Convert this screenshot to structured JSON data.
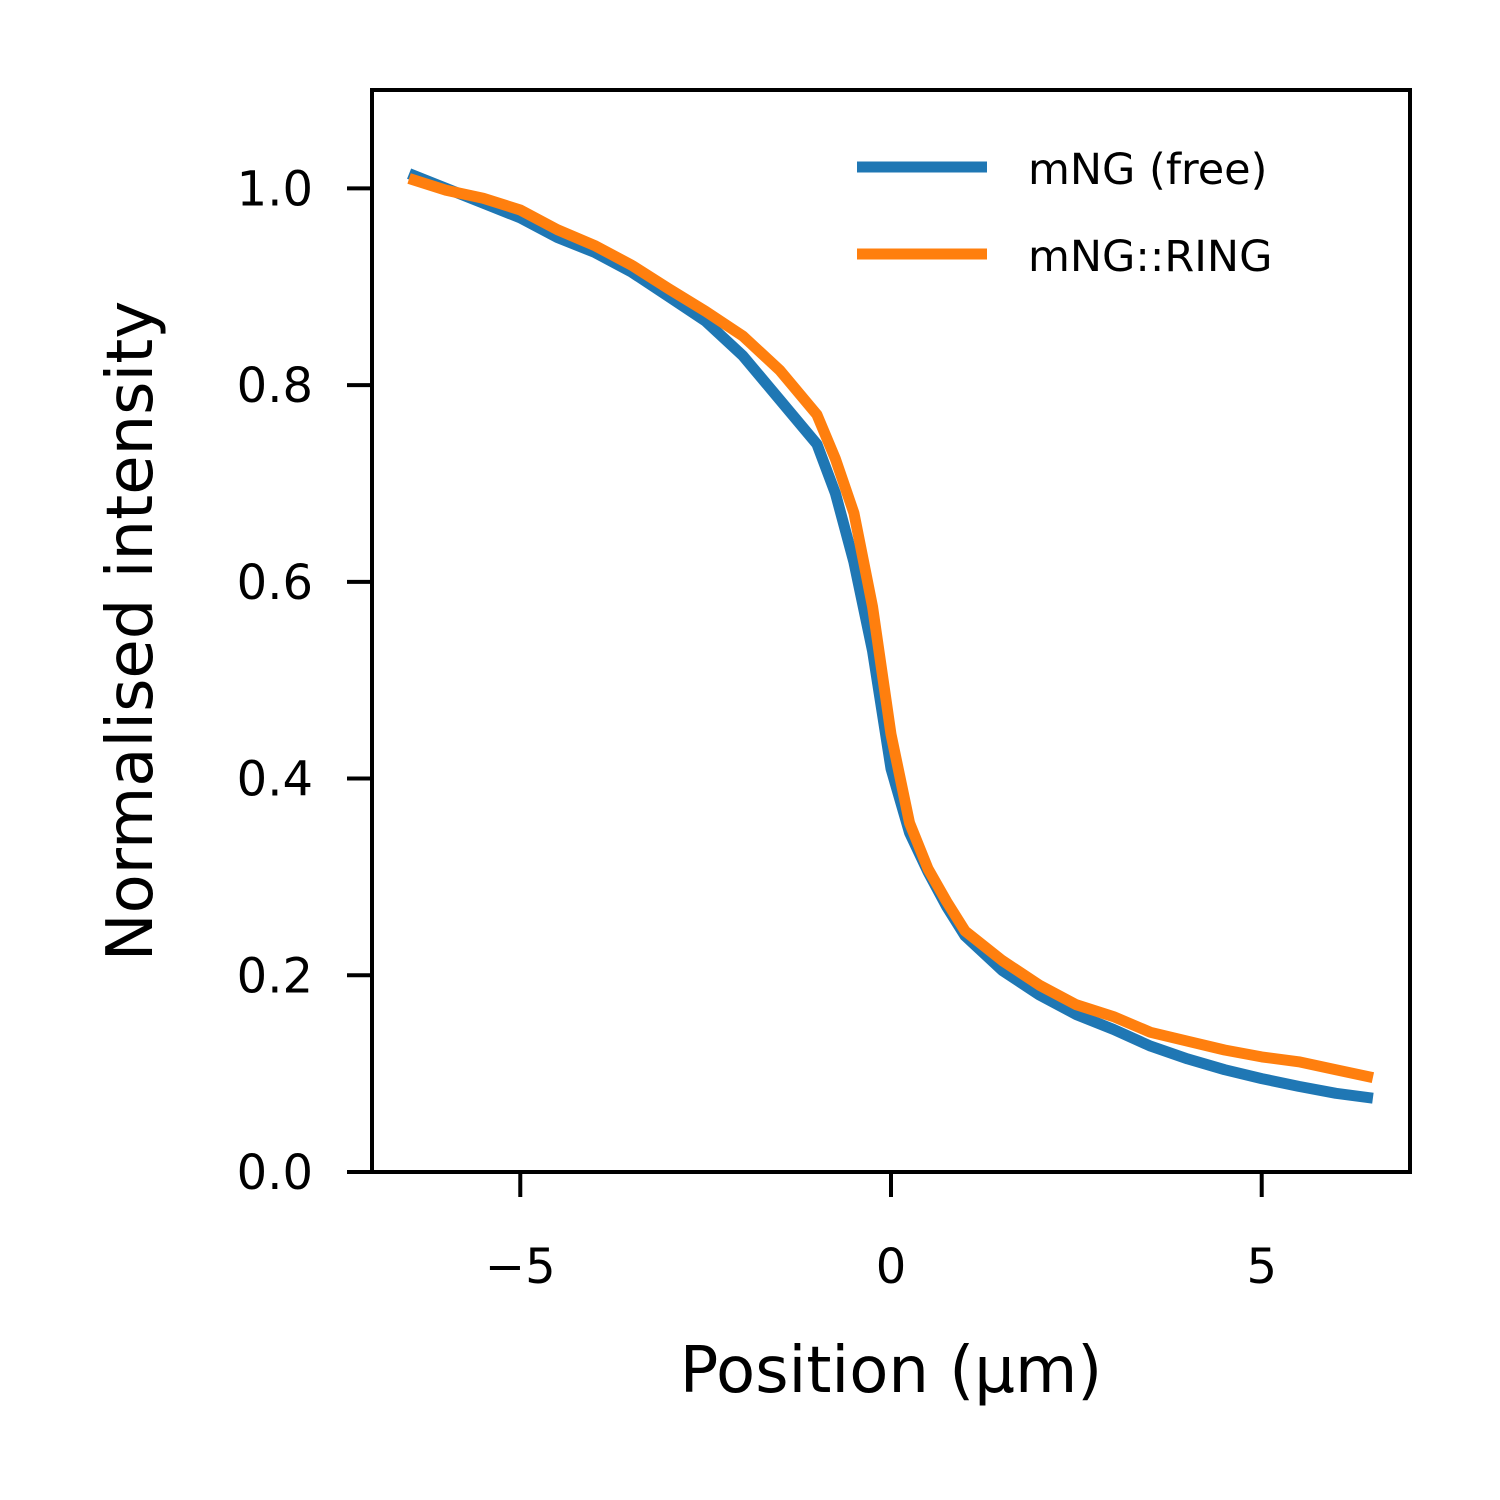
{
  "chart_data": {
    "type": "line",
    "title": "",
    "xlabel": "Position (µm)",
    "ylabel": "Normalised intensity",
    "xlim": [
      -7,
      7
    ],
    "ylim": [
      0.0,
      1.1
    ],
    "xticks": [
      {
        "value": -5,
        "label": "−5"
      },
      {
        "value": 0,
        "label": "0"
      },
      {
        "value": 5,
        "label": "5"
      }
    ],
    "yticks": [
      {
        "value": 0.0,
        "label": "0.0"
      },
      {
        "value": 0.2,
        "label": "0.2"
      },
      {
        "value": 0.4,
        "label": "0.4"
      },
      {
        "value": 0.6,
        "label": "0.6"
      },
      {
        "value": 0.8,
        "label": "0.8"
      },
      {
        "value": 1.0,
        "label": "1.0"
      }
    ],
    "grid": false,
    "legend_position": "upper right",
    "x": [
      -6.5,
      -6.0,
      -5.5,
      -5.0,
      -4.5,
      -4.0,
      -3.5,
      -3.0,
      -2.5,
      -2.0,
      -1.5,
      -1.0,
      -0.75,
      -0.5,
      -0.25,
      0.0,
      0.25,
      0.5,
      0.75,
      1.0,
      1.5,
      2.0,
      2.5,
      3.0,
      3.5,
      4.0,
      4.5,
      5.0,
      5.5,
      6.0,
      6.5
    ],
    "series": [
      {
        "name": "mNG (free)",
        "color": "#1f77b4",
        "values": [
          1.015,
          1.0,
          0.985,
          0.97,
          0.95,
          0.935,
          0.915,
          0.89,
          0.865,
          0.83,
          0.785,
          0.74,
          0.69,
          0.62,
          0.53,
          0.41,
          0.345,
          0.305,
          0.27,
          0.24,
          0.205,
          0.18,
          0.16,
          0.145,
          0.128,
          0.115,
          0.104,
          0.095,
          0.087,
          0.08,
          0.075
        ]
      },
      {
        "name": "mNG::RING",
        "color": "#ff7f0e",
        "values": [
          1.01,
          0.998,
          0.99,
          0.978,
          0.958,
          0.942,
          0.922,
          0.898,
          0.875,
          0.85,
          0.815,
          0.77,
          0.725,
          0.67,
          0.575,
          0.445,
          0.355,
          0.308,
          0.275,
          0.245,
          0.215,
          0.19,
          0.17,
          0.158,
          0.142,
          0.133,
          0.124,
          0.117,
          0.112,
          0.104,
          0.096
        ]
      }
    ]
  }
}
